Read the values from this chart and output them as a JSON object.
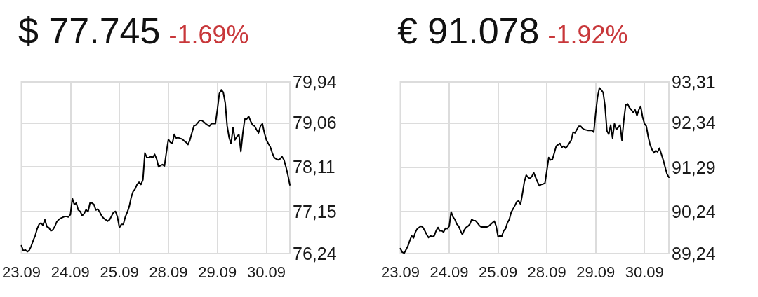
{
  "chart_data": [
    {
      "type": "line",
      "title": "$ 77.745",
      "subtitle": "-1.69%",
      "grid": true,
      "categories": [
        "23.09",
        null,
        null,
        null,
        null,
        null,
        null,
        null,
        null,
        null,
        null,
        null,
        null,
        null,
        null,
        null,
        null,
        null,
        null,
        null,
        null,
        null,
        null,
        null,
        null,
        "24.09",
        null,
        null,
        null,
        null,
        null,
        null,
        null,
        null,
        null,
        null,
        null,
        null,
        null,
        null,
        null,
        null,
        null,
        null,
        null,
        null,
        null,
        null,
        null,
        null,
        "25.09",
        null,
        null,
        null,
        null,
        null,
        null,
        null,
        null,
        null,
        null,
        null,
        null,
        null,
        null,
        null,
        null,
        null,
        null,
        null,
        null,
        null,
        null,
        null,
        null,
        "28.09",
        null,
        null,
        null,
        null,
        null,
        null,
        null,
        null,
        null,
        null,
        null,
        null,
        null,
        null,
        null,
        null,
        null,
        null,
        null,
        null,
        null,
        null,
        null,
        null,
        "29.09",
        null,
        null,
        null,
        null,
        null,
        null,
        null,
        null,
        null,
        null,
        null,
        null,
        null,
        null,
        null,
        null,
        null,
        null,
        null,
        null,
        null,
        null,
        null,
        null,
        "30.09",
        null,
        null,
        null,
        null,
        null,
        null,
        null,
        null,
        null,
        null,
        null,
        null
      ],
      "ylim": [
        76.24,
        79.94
      ],
      "yticks": [
        {
          "value": 76.24,
          "label": "76,24"
        },
        {
          "value": 77.15,
          "label": "77,15"
        },
        {
          "value": 78.11,
          "label": "78,11"
        },
        {
          "value": 79.06,
          "label": "79,06"
        },
        {
          "value": 79.94,
          "label": "79,94"
        }
      ],
      "series": [
        {
          "color": "#000000",
          "values": [
            76.41,
            76.3,
            76.32,
            76.28,
            76.31,
            76.4,
            76.52,
            76.62,
            76.77,
            76.87,
            76.9,
            76.85,
            76.97,
            76.82,
            76.8,
            76.73,
            76.75,
            76.82,
            76.92,
            76.97,
            77.0,
            77.02,
            77.04,
            77.04,
            77.03,
            77.08,
            77.43,
            77.3,
            77.33,
            77.18,
            77.15,
            77.06,
            77.1,
            77.19,
            77.14,
            77.33,
            77.33,
            77.3,
            77.18,
            77.2,
            77.13,
            77.05,
            77.0,
            76.97,
            76.94,
            76.97,
            77.05,
            77.13,
            77.15,
            77.03,
            76.8,
            76.87,
            76.87,
            77.03,
            77.13,
            77.25,
            77.45,
            77.58,
            77.63,
            77.73,
            77.78,
            77.73,
            77.83,
            78.41,
            78.31,
            78.31,
            78.33,
            78.31,
            78.38,
            78.28,
            78.11,
            78.14,
            78.16,
            78.13,
            78.43,
            78.7,
            78.64,
            78.61,
            78.81,
            78.73,
            78.74,
            78.72,
            78.71,
            78.67,
            78.64,
            78.59,
            78.69,
            78.84,
            78.99,
            79.01,
            79.06,
            79.11,
            79.11,
            79.08,
            79.04,
            79.01,
            78.99,
            79.04,
            79.04,
            79.04,
            79.34,
            79.69,
            79.77,
            79.72,
            79.49,
            78.99,
            78.74,
            78.61,
            78.96,
            78.69,
            78.76,
            78.81,
            78.44,
            78.84,
            79.14,
            79.14,
            79.2,
            79.09,
            79.01,
            78.99,
            78.91,
            78.84,
            78.99,
            79.04,
            78.84,
            78.69,
            78.61,
            78.54,
            78.41,
            78.31,
            78.28,
            78.26,
            78.28,
            78.33,
            78.26,
            78.11,
            77.93,
            77.72
          ]
        }
      ]
    },
    {
      "type": "line",
      "title": "€ 91.078",
      "subtitle": "-1.92%",
      "grid": true,
      "categories": [
        "23.09",
        null,
        null,
        null,
        null,
        null,
        null,
        null,
        null,
        null,
        null,
        null,
        null,
        null,
        null,
        null,
        null,
        null,
        null,
        null,
        null,
        null,
        null,
        null,
        null,
        null,
        "24.09",
        null,
        null,
        null,
        null,
        null,
        null,
        null,
        null,
        null,
        null,
        null,
        null,
        null,
        null,
        null,
        null,
        null,
        null,
        null,
        null,
        null,
        null,
        null,
        null,
        null,
        "25.09",
        null,
        null,
        null,
        null,
        null,
        null,
        null,
        null,
        null,
        null,
        null,
        null,
        null,
        null,
        null,
        null,
        null,
        null,
        null,
        null,
        null,
        null,
        null,
        null,
        null,
        "28.09",
        null,
        null,
        null,
        null,
        null,
        null,
        null,
        null,
        null,
        null,
        null,
        null,
        null,
        null,
        null,
        null,
        null,
        null,
        null,
        null,
        null,
        null,
        null,
        null,
        null,
        "29.09",
        null,
        null,
        null,
        null,
        null,
        null,
        null,
        null,
        null,
        null,
        null,
        null,
        null,
        null,
        null,
        null,
        null,
        null,
        null,
        null,
        null,
        null,
        null,
        null,
        null,
        "30.09",
        null,
        null,
        null,
        null,
        null,
        null,
        null,
        null,
        null,
        null,
        null,
        null,
        null
      ],
      "ylim": [
        89.24,
        93.31
      ],
      "yticks": [
        {
          "value": 89.24,
          "label": "89,24"
        },
        {
          "value": 90.24,
          "label": "90,24"
        },
        {
          "value": 91.29,
          "label": "91,29"
        },
        {
          "value": 92.34,
          "label": "92,34"
        },
        {
          "value": 93.31,
          "label": "93,31"
        }
      ],
      "series": [
        {
          "color": "#000000",
          "values": [
            89.36,
            89.27,
            89.25,
            89.33,
            89.42,
            89.55,
            89.66,
            89.61,
            89.75,
            89.83,
            89.86,
            89.89,
            89.86,
            89.78,
            89.69,
            89.62,
            89.66,
            89.64,
            89.66,
            89.78,
            89.86,
            89.78,
            89.78,
            89.75,
            89.84,
            89.83,
            89.89,
            90.23,
            90.11,
            90.05,
            89.94,
            89.89,
            89.78,
            89.69,
            89.8,
            89.86,
            89.89,
            89.94,
            90.05,
            90.02,
            90.02,
            89.97,
            89.91,
            89.87,
            89.87,
            89.87,
            89.87,
            89.89,
            89.93,
            89.97,
            90.01,
            89.89,
            89.64,
            89.66,
            89.65,
            89.78,
            89.83,
            89.97,
            90.05,
            90.22,
            90.3,
            90.38,
            90.47,
            90.49,
            90.41,
            90.66,
            90.94,
            91.1,
            91.05,
            91.02,
            91.07,
            91.16,
            91.05,
            90.94,
            90.85,
            90.88,
            90.89,
            90.91,
            91.21,
            91.52,
            91.46,
            91.48,
            91.63,
            91.79,
            91.82,
            91.85,
            91.76,
            91.79,
            91.74,
            91.79,
            91.86,
            91.93,
            92.12,
            92.1,
            92.18,
            92.26,
            92.26,
            92.21,
            92.18,
            92.17,
            92.16,
            92.16,
            92.16,
            92.12,
            92.56,
            92.95,
            93.17,
            93.12,
            93.06,
            92.73,
            92.15,
            92.07,
            92.29,
            91.98,
            92.32,
            92.18,
            92.23,
            92.29,
            91.93,
            92.4,
            92.76,
            92.79,
            92.7,
            92.65,
            92.59,
            92.65,
            92.51,
            92.65,
            92.73,
            92.48,
            92.32,
            92.26,
            92.01,
            91.82,
            91.71,
            91.63,
            91.68,
            91.65,
            91.74,
            91.6,
            91.46,
            91.29,
            91.13,
            91.05
          ]
        }
      ]
    }
  ]
}
